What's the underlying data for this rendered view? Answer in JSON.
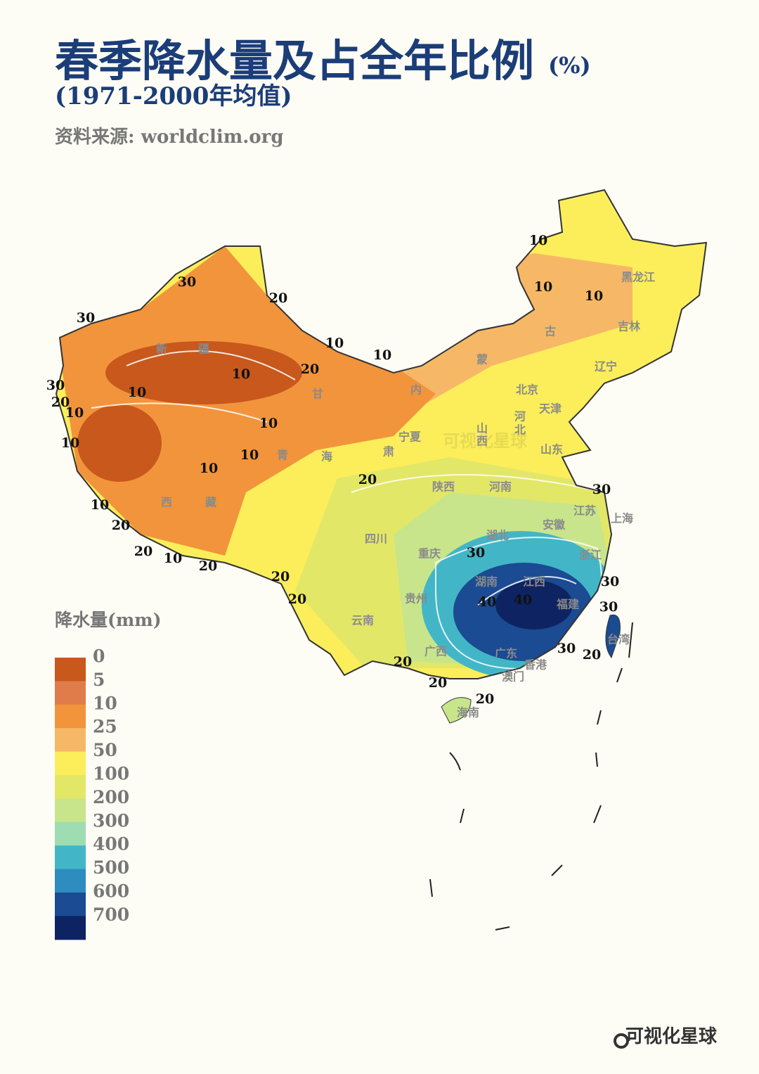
{
  "header": {
    "title": "春季降水量及占全年比例",
    "title_unit": "(%)",
    "subtitle": "(1971-2000年均值)",
    "source": "资料来源: worldclim.org"
  },
  "legend": {
    "title": "降水量(mm)",
    "items": [
      {
        "value": 0,
        "color": "#c8581c"
      },
      {
        "value": 5,
        "color": "#e07c4a"
      },
      {
        "value": 10,
        "color": "#f2943c"
      },
      {
        "value": 25,
        "color": "#f6b866"
      },
      {
        "value": 50,
        "color": "#fbee5a"
      },
      {
        "value": 100,
        "color": "#e3e768"
      },
      {
        "value": 200,
        "color": "#c8e58c"
      },
      {
        "value": 300,
        "color": "#9edcb2"
      },
      {
        "value": 400,
        "color": "#42b6c6"
      },
      {
        "value": 500,
        "color": "#2e8cbf"
      },
      {
        "value": 600,
        "color": "#1b4b92"
      },
      {
        "value": 700,
        "color": "#0e2462"
      }
    ]
  },
  "provinces": [
    "黑龙江",
    "吉林",
    "辽宁",
    "古",
    "蒙",
    "内",
    "新",
    "疆",
    "甘",
    "肃",
    "青",
    "海",
    "西",
    "藏",
    "宁夏",
    "北京",
    "天津",
    "河",
    "北",
    "山",
    "西",
    "山东",
    "陕西",
    "河南",
    "江苏",
    "上海",
    "安徽",
    "湖北",
    "四川",
    "重庆",
    "湖南",
    "江西",
    "浙江",
    "福建",
    "贵州",
    "云南",
    "广西",
    "广东",
    "香港",
    "澳门",
    "台湾",
    "海南"
  ],
  "contour_labels": [
    10,
    10,
    10,
    30,
    20,
    30,
    10,
    10,
    20,
    10,
    30,
    20,
    10,
    10,
    10,
    10,
    10,
    10,
    10,
    20,
    20,
    20,
    10,
    20,
    20,
    20,
    30,
    30,
    40,
    40,
    30,
    30,
    30,
    20,
    20,
    20,
    20
  ],
  "watermark": "可视化星球",
  "brand": "可视化星球"
}
